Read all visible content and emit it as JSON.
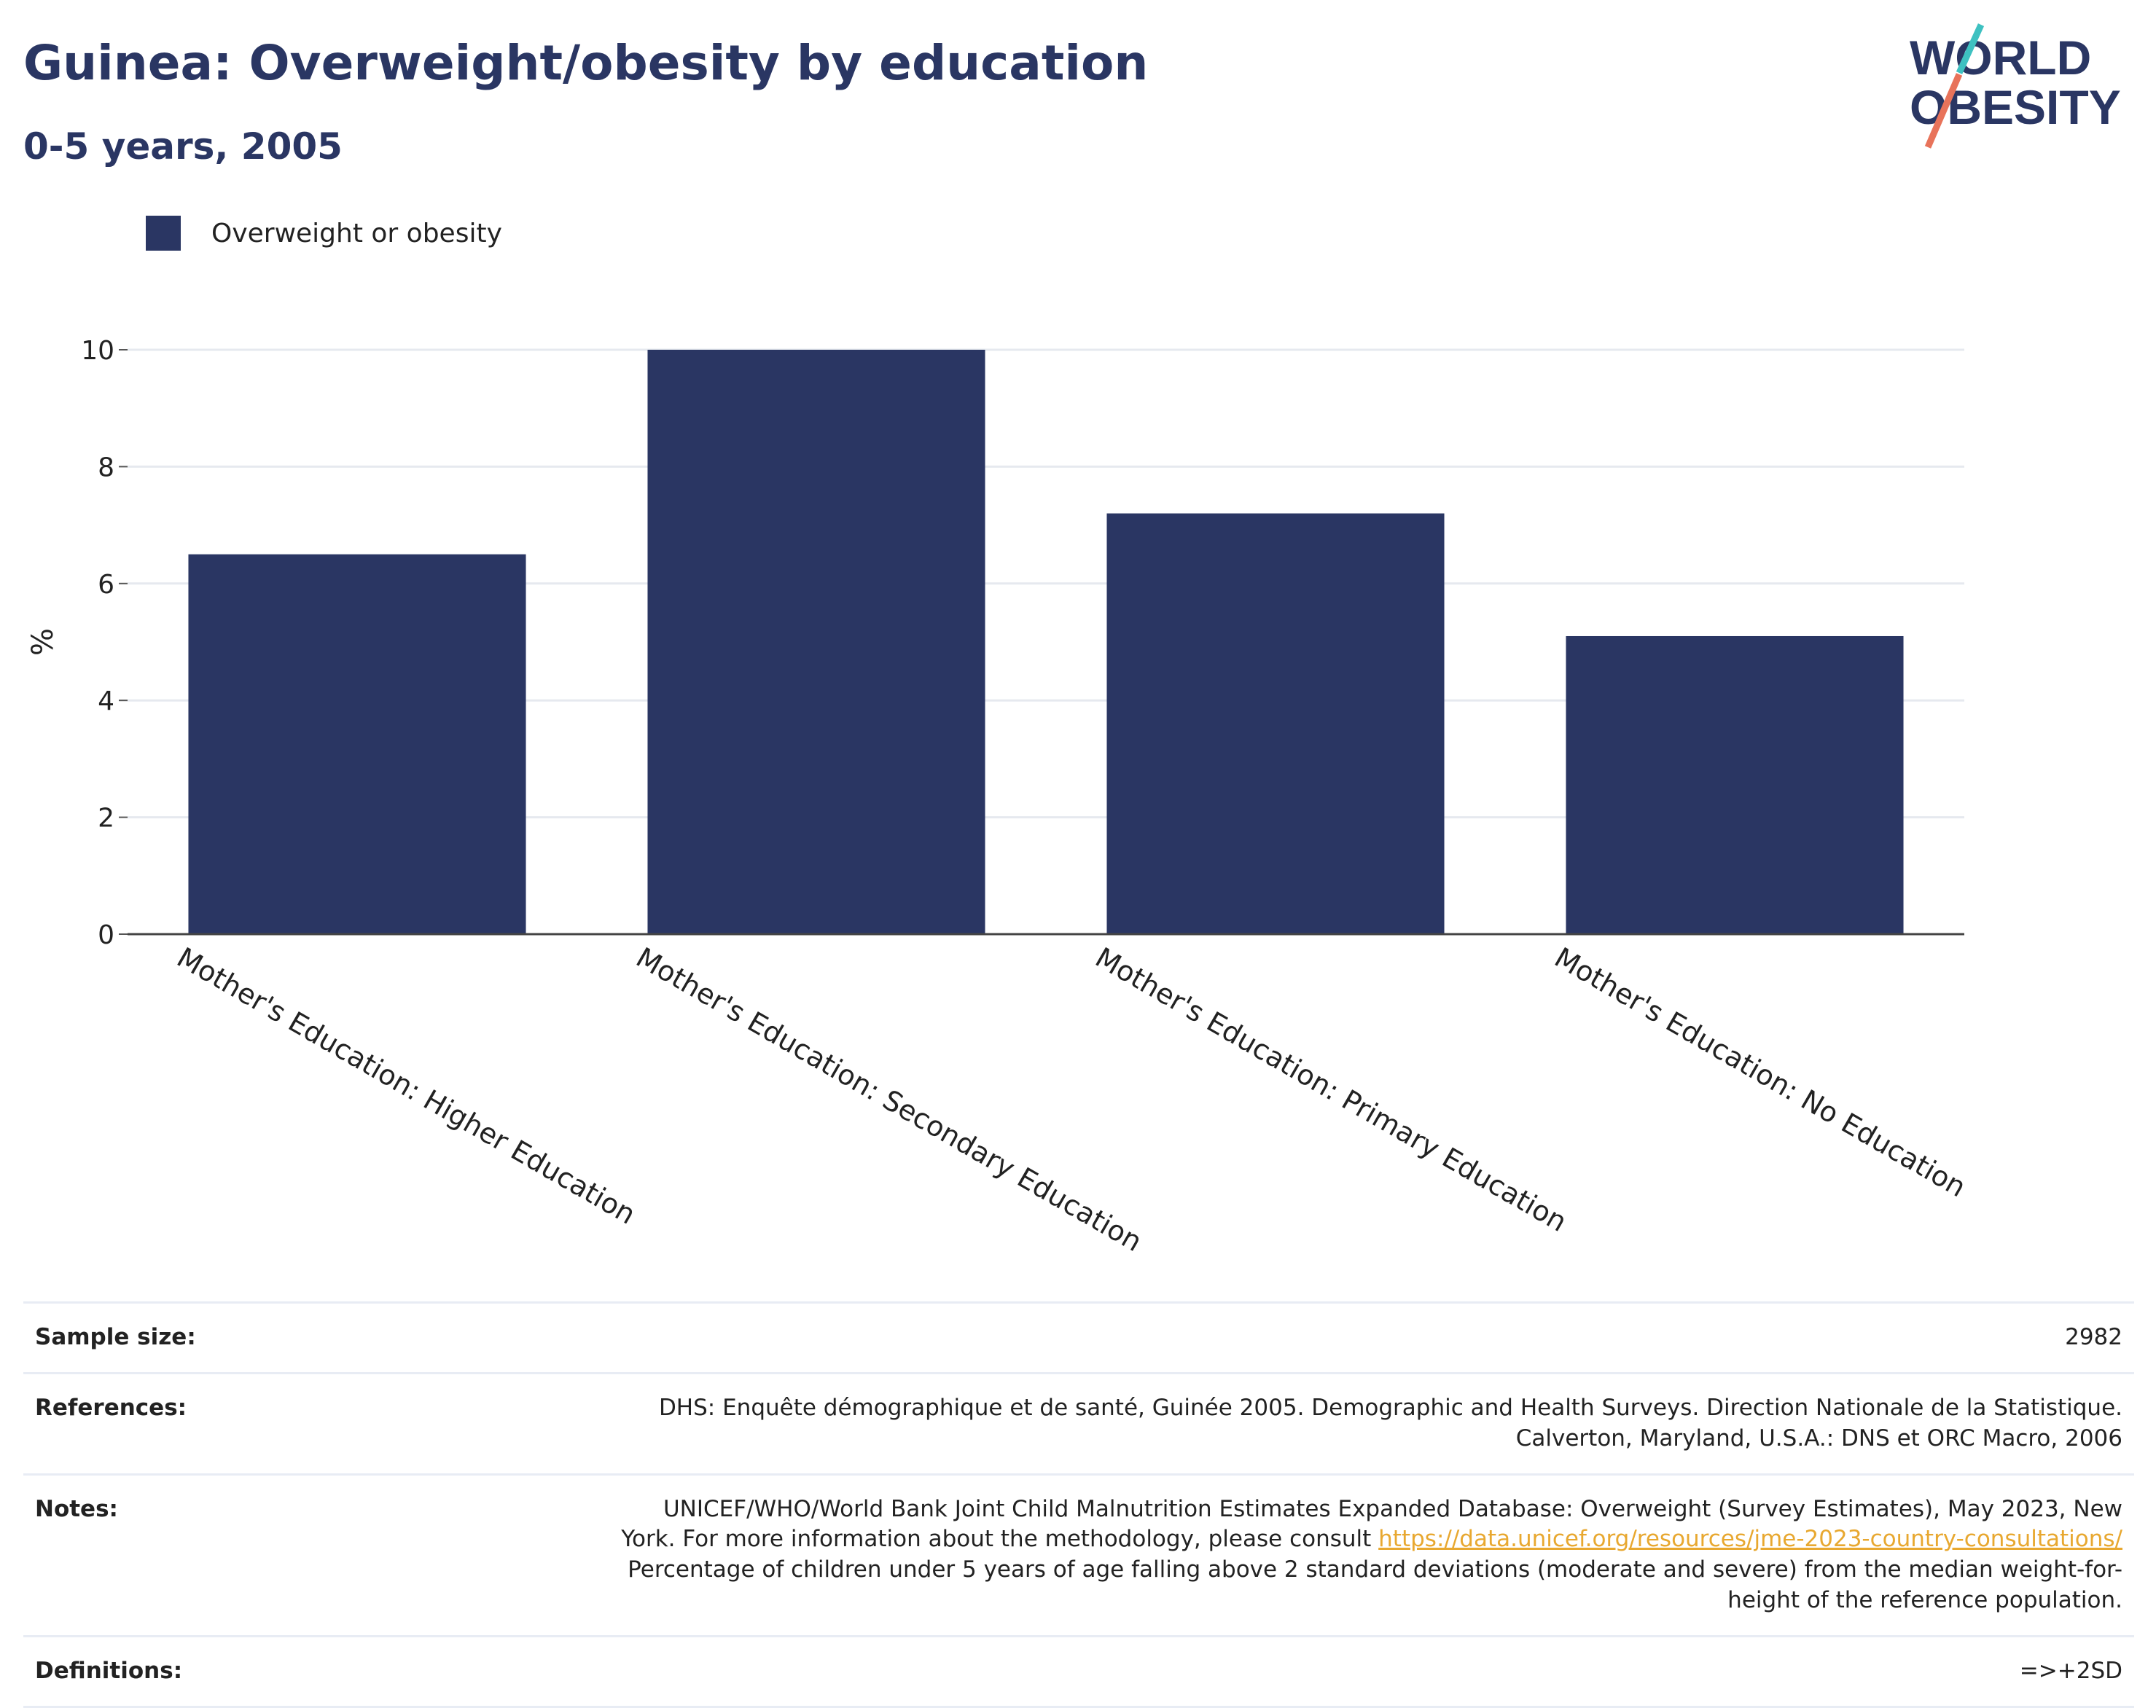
{
  "header": {
    "title": "Guinea: Overweight/obesity by education",
    "subtitle": "0-5 years, 2005"
  },
  "logo": {
    "line1": "WORLD",
    "line2": "OBESITY",
    "stroke_colors": [
      "#3ec1c1",
      "#e8735a"
    ]
  },
  "legend": {
    "label": "Overweight or obesity",
    "color": "#2a3663"
  },
  "chart_data": {
    "type": "bar",
    "categories": [
      "Mother's Education: Higher Education",
      "Mother's Education: Secondary Education",
      "Mother's Education: Primary Education",
      "Mother's Education: No Education"
    ],
    "series": [
      {
        "name": "Overweight or obesity",
        "values": [
          6.5,
          10.0,
          7.2,
          5.1
        ],
        "color": "#2a3663"
      }
    ],
    "ylabel": "%",
    "xlabel": "",
    "ylim": [
      0,
      10
    ],
    "yticks": [
      0,
      2,
      4,
      6,
      8,
      10
    ],
    "grid": true,
    "legend_position": "top-left"
  },
  "footer": {
    "sample_size_label": "Sample size:",
    "sample_size_value": "2982",
    "references_label": "References:",
    "references_line1": "DHS: Enquête démographique et de santé, Guinée 2005. Demographic and Health Surveys. Direction Nationale de la Statistique.",
    "references_line2": "Calverton, Maryland, U.S.A.: DNS et ORC Macro, 2006",
    "notes_label": "Notes:",
    "notes_line1": "UNICEF/WHO/World Bank Joint Child Malnutrition Estimates Expanded Database: Overweight (Survey Estimates), May 2023, New",
    "notes_line2_prefix": "York. For more information about the methodology, please consult",
    "notes_link": "https://data.unicef.org/resources/jme-2023-country-consultations/",
    "notes_line3": "Percentage of children under 5 years of age falling above 2 standard deviations (moderate and severe) from the median weight-for-",
    "notes_line4": "height of the reference population.",
    "definitions_label": "Definitions:",
    "definitions_value": "=>+2SD"
  }
}
